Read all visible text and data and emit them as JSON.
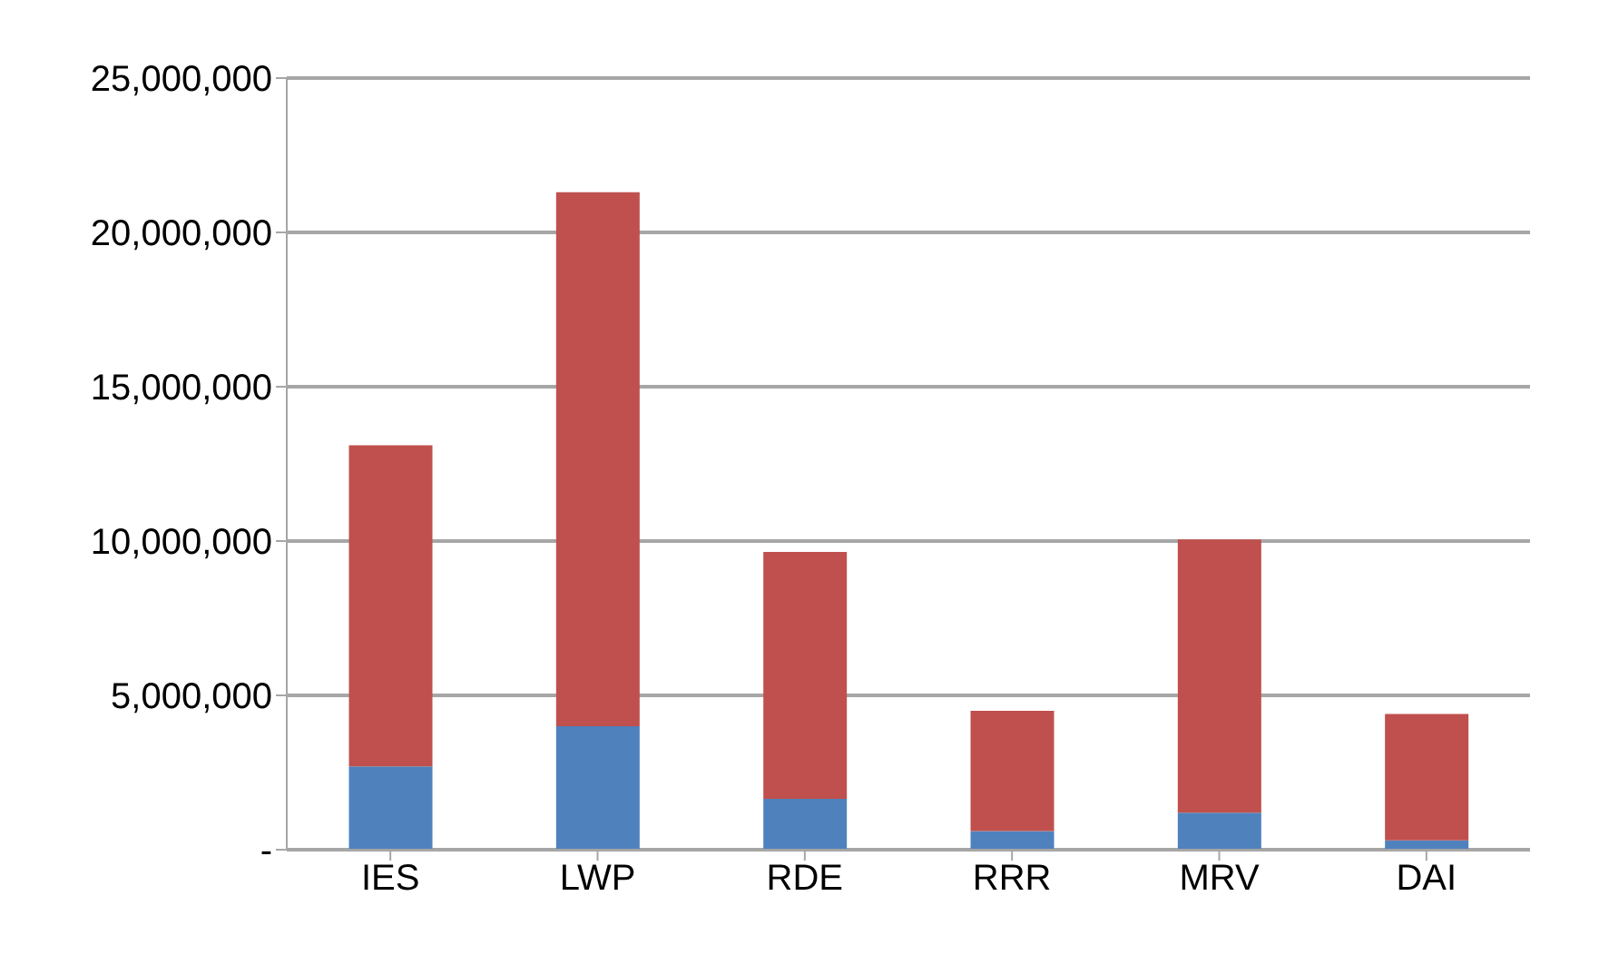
{
  "chart_data": {
    "type": "bar",
    "stacked": true,
    "categories": [
      "IES",
      "LWP",
      "RDE",
      "RRR",
      "MRV",
      "DAI"
    ],
    "series": [
      {
        "color": "#4f81bd",
        "values": [
          2700000,
          4000000,
          1650000,
          600000,
          1200000,
          300000
        ]
      },
      {
        "color": "#c0504d",
        "values": [
          10400000,
          17300000,
          8000000,
          3900000,
          8850000,
          4100000
        ]
      }
    ],
    "ylim": [
      0,
      25000000
    ],
    "yticks": [
      {
        "value": 0,
        "label": "-"
      },
      {
        "value": 5000000,
        "label": "5,000,000"
      },
      {
        "value": 10000000,
        "label": "10,000,000"
      },
      {
        "value": 15000000,
        "label": "15,000,000"
      },
      {
        "value": 20000000,
        "label": "20,000,000"
      },
      {
        "value": 25000000,
        "label": "25,000,000"
      }
    ],
    "grid": "y",
    "legend": false
  }
}
